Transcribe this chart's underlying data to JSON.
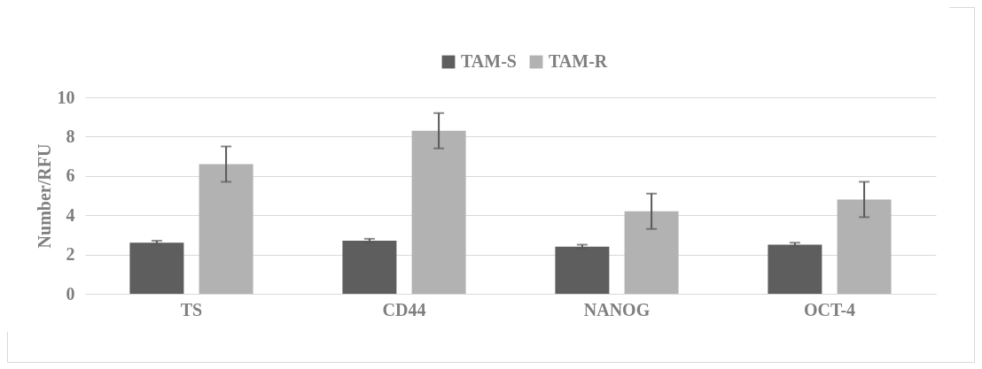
{
  "chart_data": {
    "type": "bar",
    "ylabel": "Number/RFU",
    "categories": [
      "TS",
      "CD44",
      "NANOG",
      "OCT-4"
    ],
    "series": [
      {
        "name": "TAM-S",
        "color": "#5e5e5e",
        "values": [
          2.6,
          2.7,
          2.4,
          2.5
        ],
        "errors": [
          0.1,
          0.1,
          0.1,
          0.1
        ]
      },
      {
        "name": "TAM-R",
        "color": "#b2b2b2",
        "values": [
          6.6,
          8.3,
          4.2,
          4.8
        ],
        "errors": [
          0.9,
          0.9,
          0.9,
          0.9
        ]
      }
    ],
    "ylim": [
      0,
      10
    ],
    "yticks": [
      0,
      2,
      4,
      6,
      8,
      10
    ],
    "grid": "y",
    "legend": "top"
  }
}
